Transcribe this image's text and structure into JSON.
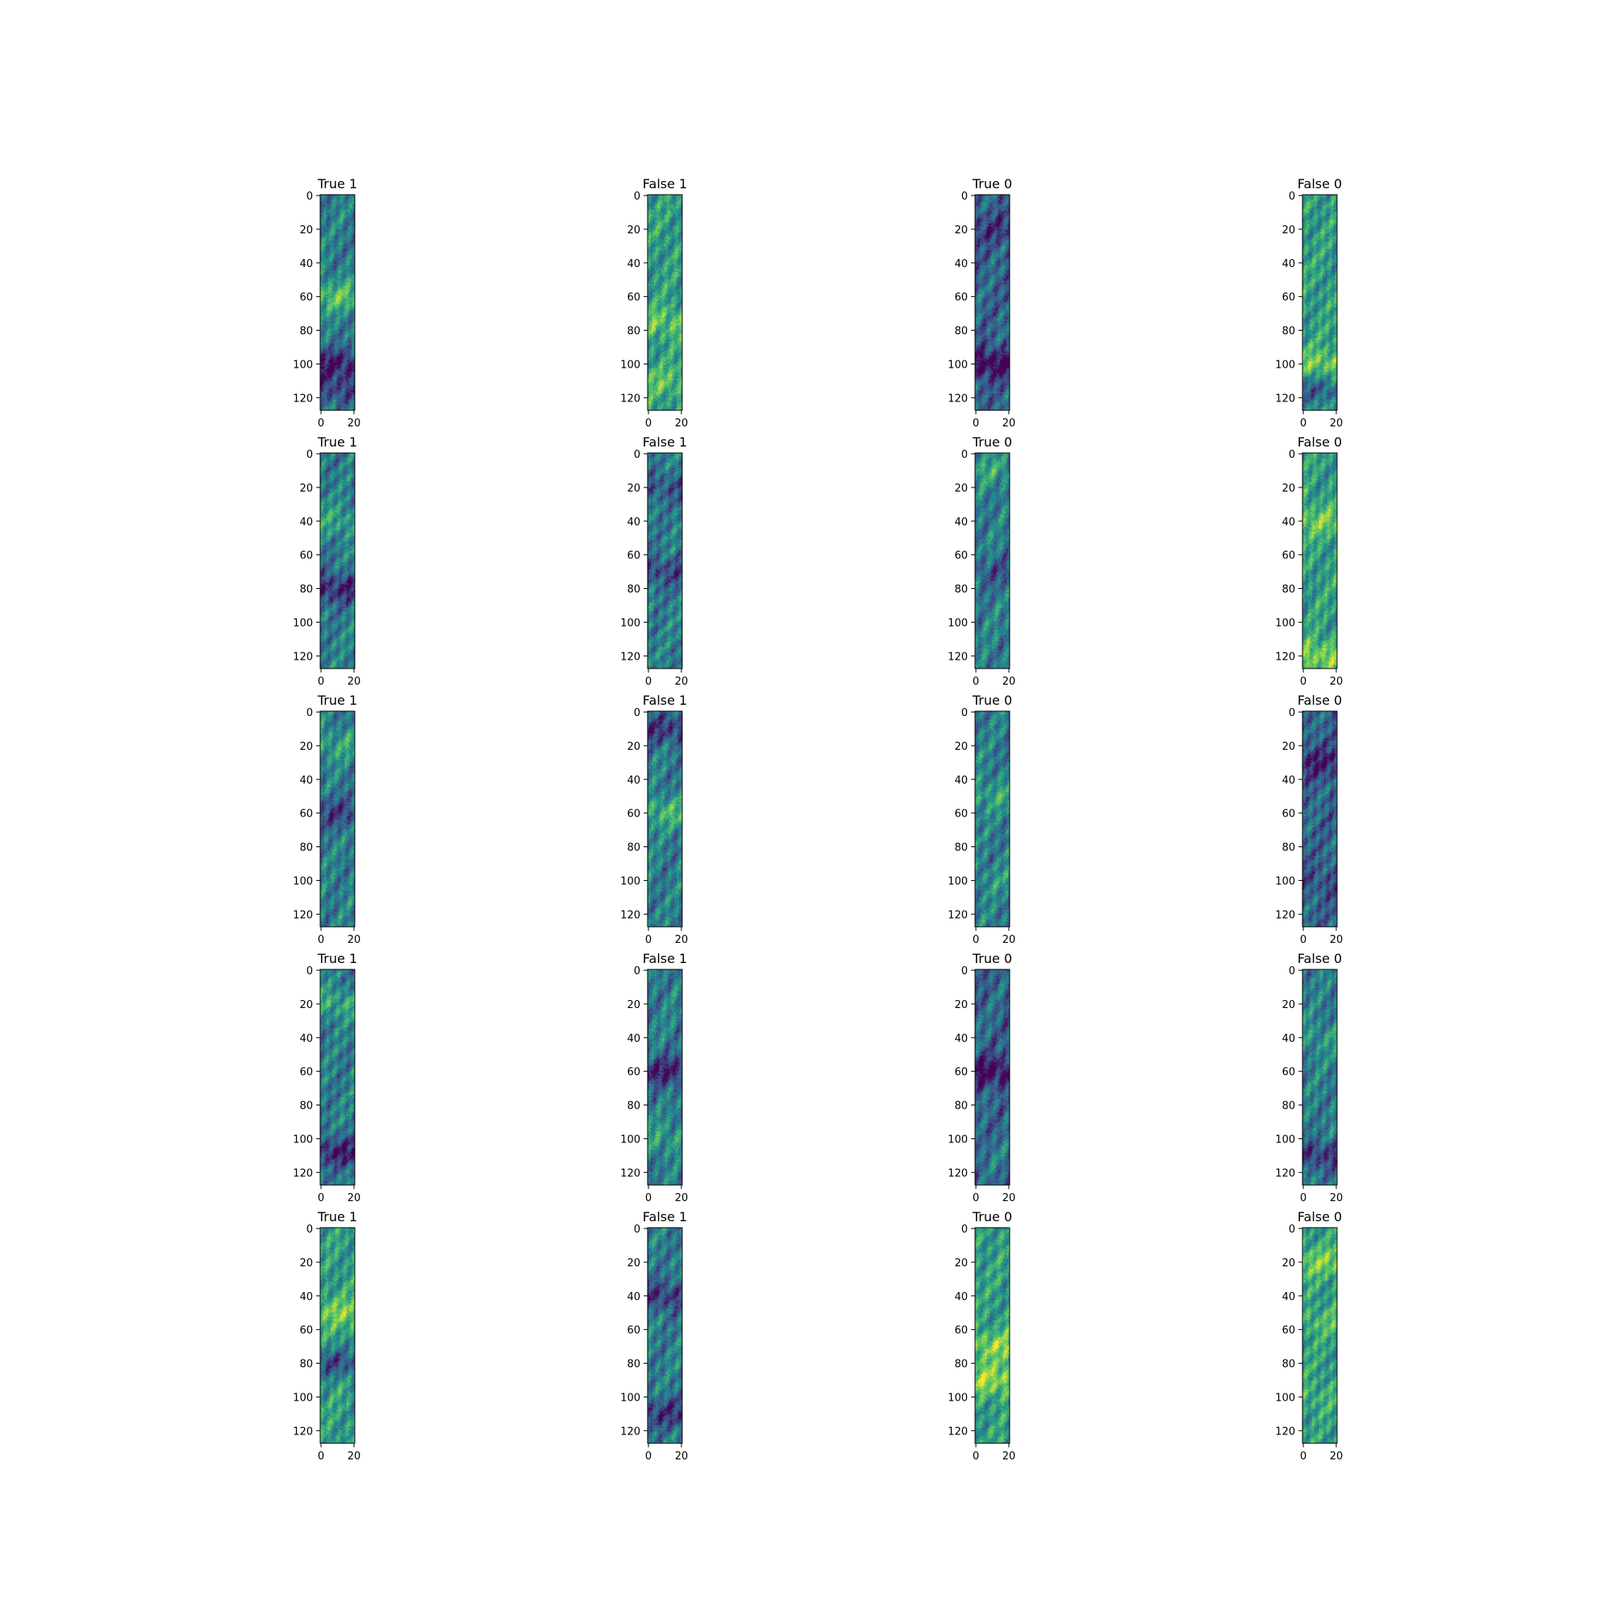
{
  "figure": {
    "background": "#ffffff",
    "rows": 5,
    "cols": 4,
    "colormap": "viridis",
    "colormap_stops": [
      "#440154",
      "#3b528b",
      "#21918c",
      "#5ec962",
      "#fde725"
    ]
  },
  "chart_data": {
    "type": "heatmap",
    "image_shape": {
      "rows": 128,
      "cols": 21
    },
    "xticks": [
      0,
      20
    ],
    "yticks": [
      0,
      20,
      40,
      60,
      80,
      100,
      120
    ],
    "subplots": [
      {
        "title": "True 1",
        "tone": "mid",
        "bands": [
          [
            60,
            0.28
          ],
          [
            100,
            -0.32
          ],
          [
            115,
            -0.2
          ]
        ]
      },
      {
        "title": "False 1",
        "tone": "bright",
        "bands": [
          [
            75,
            0.18
          ],
          [
            110,
            0.15
          ]
        ]
      },
      {
        "title": "True 0",
        "tone": "dark",
        "bands": [
          [
            20,
            -0.15
          ],
          [
            100,
            -0.32
          ]
        ]
      },
      {
        "title": "False 0",
        "tone": "bright",
        "bands": [
          [
            100,
            0.22
          ],
          [
            115,
            -0.25
          ]
        ]
      },
      {
        "title": "True 1",
        "tone": "mid",
        "bands": [
          [
            40,
            0.15
          ],
          [
            80,
            -0.3
          ]
        ]
      },
      {
        "title": "False 1",
        "tone": "mid",
        "bands": [
          [
            20,
            -0.15
          ],
          [
            70,
            -0.2
          ]
        ]
      },
      {
        "title": "True 0",
        "tone": "mid",
        "bands": [
          [
            10,
            0.15
          ],
          [
            70,
            -0.15
          ]
        ]
      },
      {
        "title": "False 0",
        "tone": "bright",
        "bands": [
          [
            40,
            0.2
          ],
          [
            120,
            0.25
          ]
        ]
      },
      {
        "title": "True 1",
        "tone": "mid",
        "bands": [
          [
            20,
            0.15
          ],
          [
            60,
            -0.22
          ]
        ]
      },
      {
        "title": "False 1",
        "tone": "mid",
        "bands": [
          [
            10,
            -0.25
          ],
          [
            60,
            0.22
          ]
        ]
      },
      {
        "title": "True 0",
        "tone": "mid",
        "bands": [
          [
            50,
            0.15
          ],
          [
            100,
            0.08
          ]
        ]
      },
      {
        "title": "False 0",
        "tone": "dark",
        "bands": [
          [
            30,
            -0.22
          ],
          [
            100,
            -0.08
          ]
        ]
      },
      {
        "title": "True 1",
        "tone": "mid",
        "bands": [
          [
            20,
            0.18
          ],
          [
            108,
            -0.32
          ]
        ]
      },
      {
        "title": "False 1",
        "tone": "mid",
        "bands": [
          [
            60,
            -0.32
          ],
          [
            100,
            0.12
          ]
        ]
      },
      {
        "title": "True 0",
        "tone": "dark",
        "bands": [
          [
            60,
            -0.28
          ],
          [
            110,
            0.08
          ]
        ]
      },
      {
        "title": "False 0",
        "tone": "mid",
        "bands": [
          [
            40,
            0.1
          ],
          [
            110,
            -0.25
          ]
        ]
      },
      {
        "title": "True 1",
        "tone": "bright",
        "bands": [
          [
            50,
            0.22
          ],
          [
            80,
            -0.3
          ]
        ]
      },
      {
        "title": "False 1",
        "tone": "mid",
        "bands": [
          [
            40,
            -0.25
          ],
          [
            110,
            -0.25
          ]
        ]
      },
      {
        "title": "True 0",
        "tone": "bright",
        "bands": [
          [
            70,
            0.25
          ],
          [
            90,
            0.28
          ]
        ]
      },
      {
        "title": "False 0",
        "tone": "bright",
        "bands": [
          [
            20,
            0.22
          ],
          [
            55,
            0.12
          ],
          [
            100,
            0.08
          ]
        ]
      }
    ]
  }
}
